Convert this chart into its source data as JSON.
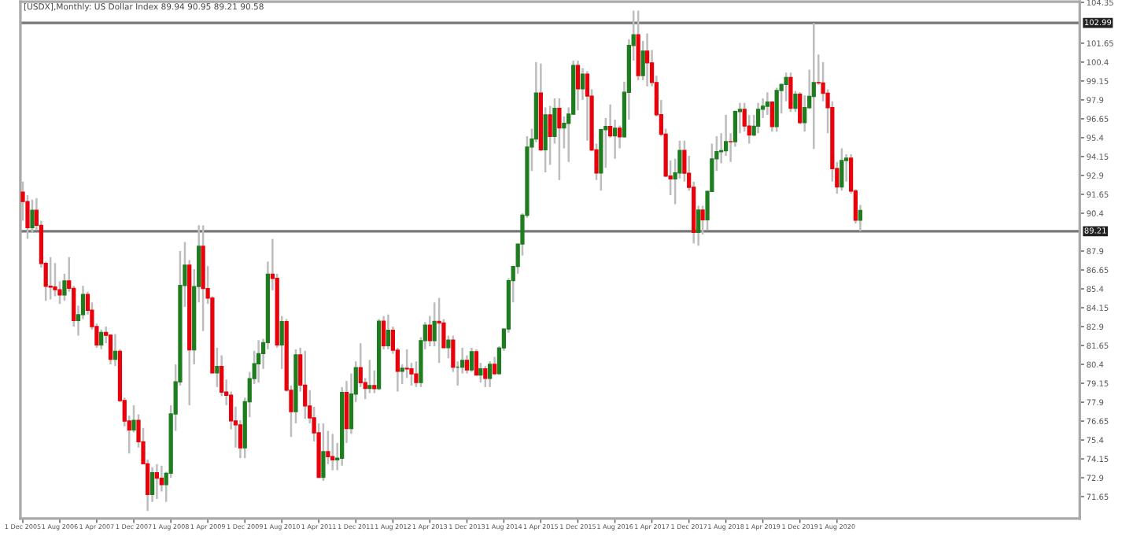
{
  "chart_data": {
    "type": "candlestick",
    "title": "[USDX],Monthly: US Dollar Index 89.94 90.95 89.21 90.58",
    "x": [
      "2005-12",
      "2006-01",
      "2006-02",
      "2006-03",
      "2006-04",
      "2006-05",
      "2006-06",
      "2006-07",
      "2006-08",
      "2006-09",
      "2006-10",
      "2006-11",
      "2006-12",
      "2007-01",
      "2007-02",
      "2007-03",
      "2007-04",
      "2007-05",
      "2007-06",
      "2007-07",
      "2007-08",
      "2007-09",
      "2007-10",
      "2007-11",
      "2007-12",
      "2008-01",
      "2008-02",
      "2008-03",
      "2008-04",
      "2008-05",
      "2008-06",
      "2008-07",
      "2008-08",
      "2008-09",
      "2008-10",
      "2008-11",
      "2008-12",
      "2009-01",
      "2009-02",
      "2009-03",
      "2009-04",
      "2009-05",
      "2009-06",
      "2009-07",
      "2009-08",
      "2009-09",
      "2009-10",
      "2009-11",
      "2009-12",
      "2010-01",
      "2010-02",
      "2010-03",
      "2010-04",
      "2010-05",
      "2010-06",
      "2010-07",
      "2010-08",
      "2010-09",
      "2010-10",
      "2010-11",
      "2010-12",
      "2011-01",
      "2011-02",
      "2011-03",
      "2011-04",
      "2011-05",
      "2011-06",
      "2011-07",
      "2011-08",
      "2011-09",
      "2011-10",
      "2011-11",
      "2011-12",
      "2012-01",
      "2012-02",
      "2012-03",
      "2012-04",
      "2012-05",
      "2012-06",
      "2012-07",
      "2012-08",
      "2012-09",
      "2012-10",
      "2012-11",
      "2012-12",
      "2013-01",
      "2013-02",
      "2013-03",
      "2013-04",
      "2013-05",
      "2013-06",
      "2013-07",
      "2013-08",
      "2013-09",
      "2013-10",
      "2013-11",
      "2013-12",
      "2014-01",
      "2014-02",
      "2014-03",
      "2014-04",
      "2014-05",
      "2014-06",
      "2014-07",
      "2014-08",
      "2014-09",
      "2014-10",
      "2014-11",
      "2014-12",
      "2015-01",
      "2015-02",
      "2015-03",
      "2015-04",
      "2015-05",
      "2015-06",
      "2015-07",
      "2015-08",
      "2015-09",
      "2015-10",
      "2015-11",
      "2015-12",
      "2016-01",
      "2016-02",
      "2016-03",
      "2016-04",
      "2016-05",
      "2016-06",
      "2016-07",
      "2016-08",
      "2016-09",
      "2016-10",
      "2016-11",
      "2016-12",
      "2017-01",
      "2017-02",
      "2017-03",
      "2017-04",
      "2017-05",
      "2017-06",
      "2017-07",
      "2017-08",
      "2017-09",
      "2017-10",
      "2017-11",
      "2017-12",
      "2018-01",
      "2018-02",
      "2018-03",
      "2018-04",
      "2018-05",
      "2018-06",
      "2018-07",
      "2018-08",
      "2018-09",
      "2018-10",
      "2018-11",
      "2018-12",
      "2019-01",
      "2019-02",
      "2019-03",
      "2019-04",
      "2019-05",
      "2019-06",
      "2019-07",
      "2019-08",
      "2019-09",
      "2019-10",
      "2019-11",
      "2019-12",
      "2020-01",
      "2020-02",
      "2020-03",
      "2020-04",
      "2020-05",
      "2020-06",
      "2020-07",
      "2020-08",
      "2020-09",
      "2020-10",
      "2020-11",
      "2020-12",
      "2021-01"
    ],
    "ohlc": [
      [
        91.8,
        92.5,
        89.9,
        91.17
      ],
      [
        91.17,
        91.6,
        88.7,
        89.45
      ],
      [
        89.45,
        91.3,
        89.1,
        90.6
      ],
      [
        90.6,
        91.4,
        89.3,
        89.6
      ],
      [
        89.6,
        89.9,
        86.8,
        87.08
      ],
      [
        87.08,
        87.2,
        84.6,
        85.57
      ],
      [
        85.57,
        87.5,
        84.7,
        85.52
      ],
      [
        85.52,
        87.1,
        84.9,
        85.34
      ],
      [
        85.34,
        85.9,
        84.4,
        85.0
      ],
      [
        85.0,
        86.4,
        84.6,
        85.92
      ],
      [
        85.92,
        87.5,
        85.2,
        85.43
      ],
      [
        85.43,
        85.6,
        82.9,
        83.3
      ],
      [
        83.3,
        84.3,
        82.3,
        83.69
      ],
      [
        83.69,
        85.6,
        83.4,
        85.03
      ],
      [
        85.03,
        85.2,
        83.7,
        83.98
      ],
      [
        83.98,
        84.5,
        82.7,
        82.9
      ],
      [
        82.9,
        83.1,
        81.5,
        81.69
      ],
      [
        81.69,
        82.7,
        81.4,
        82.51
      ],
      [
        82.51,
        82.9,
        81.8,
        82.33
      ],
      [
        82.33,
        82.4,
        80.4,
        80.74
      ],
      [
        80.74,
        82.4,
        80.3,
        81.26
      ],
      [
        81.26,
        81.4,
        77.9,
        78.01
      ],
      [
        78.01,
        78.2,
        76.3,
        76.65
      ],
      [
        76.65,
        77.0,
        74.5,
        76.06
      ],
      [
        76.06,
        77.7,
        75.9,
        76.7
      ],
      [
        76.7,
        77.1,
        74.9,
        75.28
      ],
      [
        75.28,
        76.2,
        73.8,
        73.82
      ],
      [
        73.82,
        74.1,
        70.7,
        71.8
      ],
      [
        71.8,
        73.6,
        71.3,
        73.23
      ],
      [
        73.23,
        73.8,
        71.5,
        72.87
      ],
      [
        72.87,
        73.7,
        72.0,
        72.44
      ],
      [
        72.44,
        73.3,
        71.3,
        73.2
      ],
      [
        73.2,
        77.7,
        72.9,
        77.12
      ],
      [
        77.12,
        80.4,
        76.0,
        79.24
      ],
      [
        79.24,
        87.9,
        79.0,
        85.62
      ],
      [
        85.62,
        88.5,
        84.2,
        86.97
      ],
      [
        86.97,
        87.3,
        77.7,
        81.36
      ],
      [
        81.36,
        86.7,
        80.4,
        85.55
      ],
      [
        85.55,
        89.6,
        84.5,
        88.22
      ],
      [
        88.22,
        89.6,
        82.6,
        85.42
      ],
      [
        85.42,
        86.9,
        84.4,
        84.79
      ],
      [
        84.79,
        84.9,
        79.8,
        79.84
      ],
      [
        79.84,
        81.5,
        78.9,
        80.26
      ],
      [
        80.26,
        81.0,
        78.3,
        78.57
      ],
      [
        78.57,
        79.4,
        77.7,
        78.36
      ],
      [
        78.36,
        78.6,
        76.1,
        76.66
      ],
      [
        76.66,
        77.6,
        74.9,
        76.4
      ],
      [
        76.4,
        76.7,
        74.2,
        74.88
      ],
      [
        74.88,
        78.2,
        74.2,
        77.93
      ],
      [
        77.93,
        79.9,
        76.9,
        79.46
      ],
      [
        79.46,
        81.3,
        79.1,
        80.44
      ],
      [
        80.44,
        82.0,
        79.2,
        81.11
      ],
      [
        81.11,
        82.1,
        80.1,
        81.84
      ],
      [
        81.84,
        87.2,
        81.4,
        86.36
      ],
      [
        86.36,
        88.7,
        85.3,
        86.09
      ],
      [
        86.09,
        86.4,
        81.5,
        81.69
      ],
      [
        81.69,
        83.6,
        80.1,
        83.23
      ],
      [
        83.23,
        83.4,
        78.6,
        78.69
      ],
      [
        78.69,
        79.0,
        75.6,
        77.27
      ],
      [
        77.27,
        81.4,
        76.5,
        81.03
      ],
      [
        81.03,
        81.5,
        78.6,
        79.03
      ],
      [
        79.03,
        81.3,
        76.8,
        77.65
      ],
      [
        77.65,
        78.7,
        76.5,
        76.86
      ],
      [
        76.86,
        77.6,
        75.3,
        75.87
      ],
      [
        75.87,
        76.5,
        72.9,
        72.93
      ],
      [
        72.93,
        76.5,
        72.7,
        74.62
      ],
      [
        74.62,
        76.0,
        73.8,
        74.3
      ],
      [
        74.3,
        75.8,
        73.4,
        74.09
      ],
      [
        74.09,
        75.2,
        73.4,
        74.19
      ],
      [
        74.19,
        78.9,
        73.7,
        78.55
      ],
      [
        78.55,
        79.3,
        75.2,
        76.15
      ],
      [
        76.15,
        79.8,
        75.8,
        78.44
      ],
      [
        78.44,
        80.6,
        77.9,
        80.18
      ],
      [
        80.18,
        81.8,
        78.9,
        79.19
      ],
      [
        79.19,
        79.5,
        78.1,
        78.81
      ],
      [
        78.81,
        80.7,
        78.5,
        79.0
      ],
      [
        79.0,
        80.0,
        78.5,
        78.8
      ],
      [
        78.8,
        83.4,
        78.7,
        83.26
      ],
      [
        83.26,
        83.6,
        81.4,
        81.63
      ],
      [
        81.63,
        83.7,
        81.4,
        82.66
      ],
      [
        82.66,
        82.9,
        81.1,
        81.34
      ],
      [
        81.34,
        81.5,
        78.6,
        79.95
      ],
      [
        79.95,
        80.4,
        79.1,
        80.14
      ],
      [
        80.14,
        81.4,
        79.5,
        80.1
      ],
      [
        80.1,
        80.5,
        79.0,
        79.77
      ],
      [
        79.77,
        80.6,
        78.9,
        79.2
      ],
      [
        79.2,
        82.2,
        78.9,
        81.97
      ],
      [
        81.97,
        83.2,
        81.4,
        82.99
      ],
      [
        82.99,
        83.6,
        81.6,
        81.98
      ],
      [
        81.98,
        84.5,
        81.6,
        83.24
      ],
      [
        83.24,
        84.8,
        80.5,
        83.14
      ],
      [
        83.14,
        83.4,
        81.5,
        81.5
      ],
      [
        81.5,
        82.3,
        80.8,
        82.0
      ],
      [
        82.0,
        82.3,
        79.9,
        80.22
      ],
      [
        80.22,
        80.6,
        79.0,
        80.22
      ],
      [
        80.22,
        81.5,
        79.8,
        80.66
      ],
      [
        80.66,
        81.0,
        79.8,
        80.04
      ],
      [
        80.04,
        81.5,
        79.9,
        81.24
      ],
      [
        81.24,
        81.4,
        79.7,
        79.7
      ],
      [
        79.7,
        80.5,
        79.2,
        80.1
      ],
      [
        80.1,
        80.3,
        78.9,
        79.48
      ],
      [
        79.48,
        80.6,
        78.9,
        80.4
      ],
      [
        80.4,
        80.9,
        79.7,
        79.79
      ],
      [
        79.79,
        81.6,
        79.7,
        81.49
      ],
      [
        81.49,
        82.8,
        81.3,
        82.74
      ],
      [
        82.74,
        86.1,
        82.5,
        85.94
      ],
      [
        85.94,
        86.9,
        84.5,
        86.88
      ],
      [
        86.88,
        88.4,
        86.4,
        88.36
      ],
      [
        88.36,
        90.4,
        87.6,
        90.27
      ],
      [
        90.27,
        95.5,
        90.1,
        94.78
      ],
      [
        94.78,
        96.0,
        93.2,
        95.31
      ],
      [
        95.31,
        100.4,
        95.1,
        98.36
      ],
      [
        98.36,
        100.3,
        94.5,
        94.6
      ],
      [
        94.6,
        97.4,
        93.1,
        96.91
      ],
      [
        96.91,
        97.5,
        93.6,
        95.48
      ],
      [
        95.48,
        98.0,
        95.0,
        97.34
      ],
      [
        97.34,
        98.0,
        92.6,
        96.05
      ],
      [
        96.05,
        96.8,
        94.7,
        96.35
      ],
      [
        96.35,
        97.4,
        93.8,
        96.96
      ],
      [
        96.96,
        100.5,
        96.9,
        100.17
      ],
      [
        100.17,
        100.5,
        97.2,
        98.63
      ],
      [
        98.63,
        100.0,
        97.9,
        99.61
      ],
      [
        99.61,
        99.8,
        95.2,
        98.15
      ],
      [
        98.15,
        98.6,
        94.5,
        94.59
      ],
      [
        94.59,
        95.0,
        92.6,
        93.07
      ],
      [
        93.07,
        96.0,
        91.9,
        95.93
      ],
      [
        95.93,
        96.7,
        93.4,
        96.14
      ],
      [
        96.14,
        97.6,
        95.4,
        95.53
      ],
      [
        95.53,
        96.6,
        94.0,
        96.03
      ],
      [
        96.03,
        96.2,
        94.7,
        95.46
      ],
      [
        95.46,
        99.1,
        95.4,
        98.4
      ],
      [
        98.4,
        101.9,
        96.6,
        101.5
      ],
      [
        101.5,
        103.8,
        100.5,
        102.21
      ],
      [
        102.21,
        103.8,
        99.2,
        99.51
      ],
      [
        99.51,
        101.8,
        99.2,
        101.12
      ],
      [
        101.12,
        102.3,
        98.8,
        100.35
      ],
      [
        100.35,
        101.2,
        98.8,
        99.05
      ],
      [
        99.05,
        99.5,
        96.8,
        96.92
      ],
      [
        96.92,
        97.9,
        95.5,
        95.63
      ],
      [
        95.63,
        96.0,
        92.8,
        92.86
      ],
      [
        92.86,
        93.9,
        91.6,
        92.67
      ],
      [
        92.67,
        94.0,
        91.0,
        93.07
      ],
      [
        93.07,
        95.2,
        92.7,
        94.55
      ],
      [
        94.55,
        95.2,
        92.5,
        93.05
      ],
      [
        93.05,
        94.2,
        91.9,
        92.12
      ],
      [
        92.12,
        92.5,
        88.4,
        89.13
      ],
      [
        89.13,
        90.9,
        88.25,
        90.61
      ],
      [
        90.61,
        90.9,
        89.0,
        89.97
      ],
      [
        89.97,
        91.9,
        89.3,
        91.84
      ],
      [
        91.84,
        95.0,
        91.8,
        94.0
      ],
      [
        94.0,
        95.5,
        93.2,
        94.47
      ],
      [
        94.47,
        95.7,
        93.7,
        94.54
      ],
      [
        94.54,
        96.9,
        94.2,
        95.14
      ],
      [
        95.14,
        95.7,
        93.8,
        95.13
      ],
      [
        95.13,
        97.2,
        94.8,
        97.13
      ],
      [
        97.13,
        97.7,
        95.7,
        97.27
      ],
      [
        97.27,
        97.7,
        95.8,
        96.17
      ],
      [
        96.17,
        96.9,
        95.0,
        95.58
      ],
      [
        95.58,
        96.9,
        95.5,
        96.16
      ],
      [
        96.16,
        97.7,
        95.7,
        97.28
      ],
      [
        97.28,
        98.0,
        96.7,
        97.48
      ],
      [
        97.48,
        98.4,
        96.9,
        97.75
      ],
      [
        97.75,
        97.8,
        95.8,
        96.13
      ],
      [
        96.13,
        98.7,
        95.8,
        98.52
      ],
      [
        98.52,
        99.0,
        97.0,
        98.92
      ],
      [
        98.92,
        99.7,
        97.8,
        99.38
      ],
      [
        99.38,
        99.7,
        97.1,
        97.35
      ],
      [
        97.35,
        98.5,
        97.1,
        98.27
      ],
      [
        98.27,
        98.4,
        96.3,
        96.39
      ],
      [
        96.39,
        98.2,
        95.8,
        97.39
      ],
      [
        97.39,
        99.9,
        97.3,
        98.13
      ],
      [
        98.13,
        102.99,
        94.65,
        99.04
      ],
      [
        99.04,
        100.9,
        98.9,
        99.02
      ],
      [
        99.02,
        100.4,
        97.8,
        98.34
      ],
      [
        98.34,
        98.6,
        95.7,
        97.39
      ],
      [
        97.39,
        97.8,
        92.5,
        93.35
      ],
      [
        93.35,
        93.8,
        91.7,
        92.14
      ],
      [
        92.14,
        94.7,
        91.9,
        93.89
      ],
      [
        93.89,
        94.3,
        92.5,
        94.04
      ],
      [
        94.04,
        94.3,
        91.7,
        91.87
      ],
      [
        91.87,
        92.0,
        89.72,
        89.94
      ],
      [
        89.94,
        90.95,
        89.21,
        90.58
      ]
    ],
    "colors": [
      "#e8000b",
      "#e8000b",
      "#1e7d1e",
      "#e8000b",
      "#e8000b",
      "#e8000b",
      "#e8000b",
      "#e8000b",
      "#e8000b",
      "#1e7d1e",
      "#e8000b",
      "#e8000b",
      "#1e7d1e",
      "#1e7d1e",
      "#e8000b",
      "#e8000b",
      "#e8000b",
      "#1e7d1e",
      "#e8000b",
      "#e8000b",
      "#1e7d1e",
      "#e8000b",
      "#e8000b",
      "#e8000b",
      "#1e7d1e",
      "#e8000b",
      "#e8000b",
      "#e8000b",
      "#1e7d1e",
      "#e8000b",
      "#e8000b",
      "#1e7d1e",
      "#1e7d1e",
      "#1e7d1e",
      "#1e7d1e",
      "#1e7d1e",
      "#e8000b",
      "#1e7d1e",
      "#1e7d1e",
      "#e8000b",
      "#e8000b",
      "#e8000b",
      "#1e7d1e",
      "#e8000b",
      "#e8000b",
      "#e8000b",
      "#e8000b",
      "#e8000b",
      "#1e7d1e",
      "#1e7d1e",
      "#1e7d1e",
      "#1e7d1e",
      "#1e7d1e",
      "#1e7d1e",
      "#e8000b",
      "#e8000b",
      "#1e7d1e",
      "#e8000b",
      "#e8000b",
      "#1e7d1e",
      "#e8000b",
      "#e8000b",
      "#e8000b",
      "#e8000b",
      "#e8000b",
      "#1e7d1e",
      "#e8000b",
      "#e8000b",
      "#1e7d1e",
      "#1e7d1e",
      "#e8000b",
      "#1e7d1e",
      "#1e7d1e",
      "#e8000b",
      "#e8000b",
      "#1e7d1e",
      "#e8000b",
      "#1e7d1e",
      "#e8000b",
      "#1e7d1e",
      "#e8000b",
      "#e8000b",
      "#1e7d1e",
      "#e8000b",
      "#e8000b",
      "#e8000b",
      "#1e7d1e",
      "#1e7d1e",
      "#e8000b",
      "#1e7d1e",
      "#e8000b",
      "#e8000b",
      "#1e7d1e",
      "#e8000b",
      "#1e7d1e",
      "#1e7d1e",
      "#e8000b",
      "#1e7d1e",
      "#e8000b",
      "#1e7d1e",
      "#e8000b",
      "#1e7d1e",
      "#e8000b",
      "#1e7d1e",
      "#1e7d1e",
      "#1e7d1e",
      "#1e7d1e",
      "#1e7d1e",
      "#1e7d1e",
      "#1e7d1e",
      "#1e7d1e",
      "#1e7d1e",
      "#e8000b",
      "#1e7d1e",
      "#e8000b",
      "#1e7d1e",
      "#e8000b",
      "#1e7d1e",
      "#1e7d1e",
      "#1e7d1e",
      "#e8000b",
      "#1e7d1e",
      "#e8000b",
      "#e8000b",
      "#e8000b",
      "#1e7d1e",
      "#1e7d1e",
      "#e8000b",
      "#1e7d1e",
      "#e8000b",
      "#1e7d1e",
      "#1e7d1e",
      "#1e7d1e",
      "#e8000b",
      "#1e7d1e",
      "#e8000b",
      "#e8000b",
      "#e8000b",
      "#e8000b",
      "#e8000b",
      "#e8000b",
      "#1e7d1e",
      "#1e7d1e",
      "#e8000b",
      "#e8000b",
      "#e8000b",
      "#1e7d1e",
      "#e8000b",
      "#1e7d1e",
      "#1e7d1e",
      "#1e7d1e",
      "#1e7d1e",
      "#1e7d1e",
      "#e8000b",
      "#1e7d1e",
      "#1e7d1e",
      "#e8000b",
      "#e8000b",
      "#1e7d1e",
      "#1e7d1e",
      "#1e7d1e",
      "#1e7d1e",
      "#e8000b",
      "#1e7d1e",
      "#1e7d1e",
      "#1e7d1e",
      "#e8000b",
      "#1e7d1e",
      "#e8000b",
      "#1e7d1e",
      "#1e7d1e",
      "#1e7d1e",
      "#e8000b",
      "#e8000b",
      "#e8000b",
      "#e8000b",
      "#e8000b",
      "#1e7d1e",
      "#1e7d1e",
      "#e8000b",
      "#e8000b",
      "#1e7d1e"
    ],
    "xlim": [
      "2005-11-15",
      "2024-12-15"
    ],
    "xticks": [
      {
        "value": "2005-12-01",
        "label": "1 Dec 2005"
      },
      {
        "value": "2006-08-01",
        "label": "1 Aug 2006"
      },
      {
        "value": "2007-04-01",
        "label": "1 Apr 2007"
      },
      {
        "value": "2007-12-01",
        "label": "1 Dec 2007"
      },
      {
        "value": "2008-08-01",
        "label": "1 Aug 2008"
      },
      {
        "value": "2009-04-01",
        "label": "1 Apr 2009"
      },
      {
        "value": "2009-12-01",
        "label": "1 Dec 2009"
      },
      {
        "value": "2010-08-01",
        "label": "1 Aug 2010"
      },
      {
        "value": "2011-04-01",
        "label": "1 Apr 2011"
      },
      {
        "value": "2011-12-01",
        "label": "1 Dec 2011"
      },
      {
        "value": "2012-08-01",
        "label": "1 Aug 2012"
      },
      {
        "value": "2013-04-01",
        "label": "1 Apr 2013"
      },
      {
        "value": "2013-12-01",
        "label": "1 Dec 2013"
      },
      {
        "value": "2014-08-01",
        "label": "1 Aug 2014"
      },
      {
        "value": "2015-04-01",
        "label": "1 Apr 2015"
      },
      {
        "value": "2015-12-01",
        "label": "1 Dec 2015"
      },
      {
        "value": "2016-08-01",
        "label": "1 Aug 2016"
      },
      {
        "value": "2017-04-01",
        "label": "1 Apr 2017"
      },
      {
        "value": "2017-12-01",
        "label": "1 Dec 2017"
      },
      {
        "value": "2018-08-01",
        "label": "1 Aug 2018"
      },
      {
        "value": "2019-04-01",
        "label": "1 Apr 2019"
      },
      {
        "value": "2019-12-01",
        "label": "1 Dec 2019"
      },
      {
        "value": "2020-08-01",
        "label": "1 Aug 2020"
      }
    ],
    "ylim": [
      70.2,
      104.4
    ],
    "yticks": [
      71.65,
      72.9,
      74.15,
      75.4,
      76.65,
      77.9,
      79.15,
      80.4,
      81.65,
      82.9,
      84.15,
      85.4,
      86.65,
      87.9,
      90.4,
      91.65,
      92.9,
      94.15,
      95.4,
      96.65,
      97.9,
      99.15,
      100.4,
      101.65,
      104.35
    ],
    "ref_lines": [
      {
        "axis": "y",
        "value": 102.99,
        "label": "102.99",
        "color": "#777777"
      },
      {
        "axis": "y",
        "value": 89.21,
        "label": "89.21",
        "color": "#777777"
      }
    ],
    "grid": false
  }
}
